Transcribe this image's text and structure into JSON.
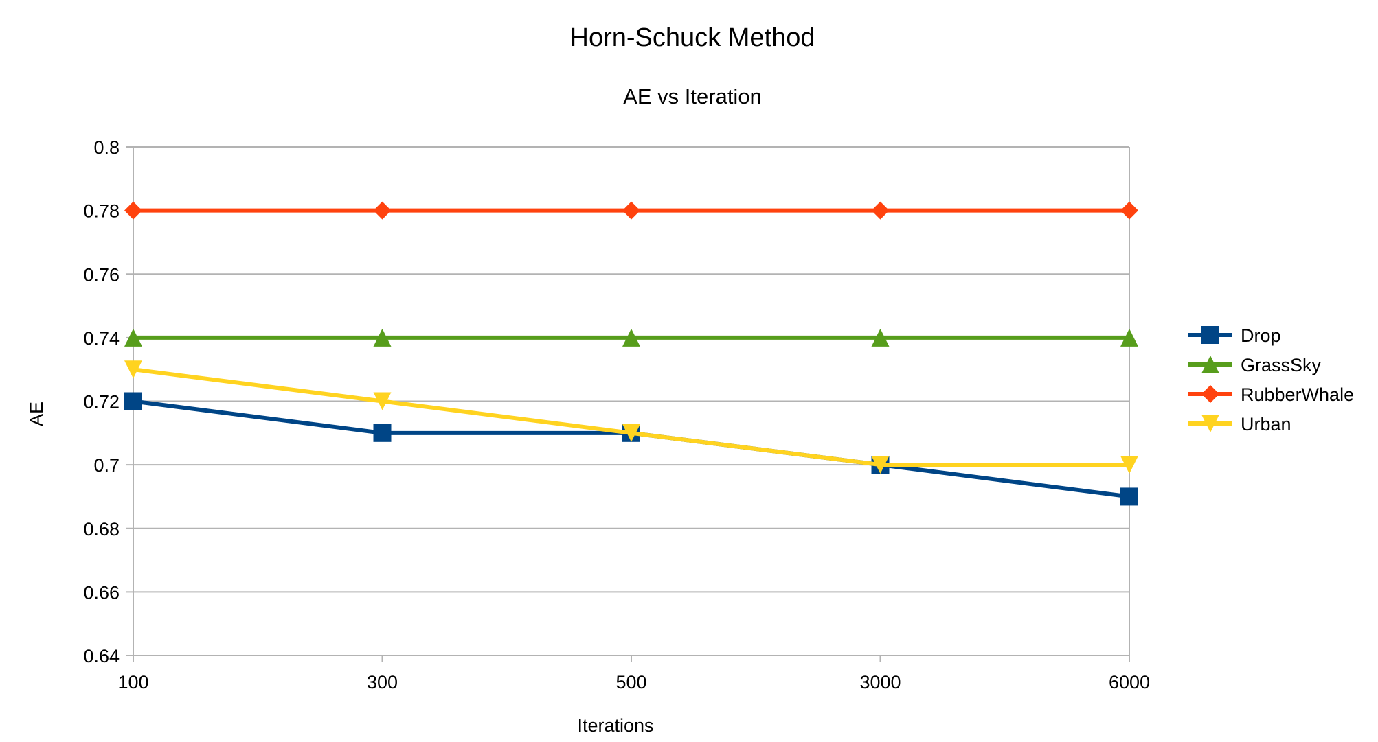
{
  "chart_data": {
    "type": "line",
    "title": "Horn-Schuck Method",
    "subtitle": "AE vs Iteration",
    "xlabel": "Iterations",
    "ylabel": "AE",
    "categories": [
      "100",
      "300",
      "500",
      "3000",
      "6000"
    ],
    "ylim": [
      0.64,
      0.8
    ],
    "yticks": [
      "0.8",
      "0.78",
      "0.76",
      "0.74",
      "0.72",
      "0.7",
      "0.68",
      "0.66",
      "0.64"
    ],
    "grid": true,
    "legend_position": "right",
    "series": [
      {
        "name": "Drop",
        "values": [
          0.72,
          0.71,
          0.71,
          0.7,
          0.69
        ],
        "color": "#004586",
        "marker": "square"
      },
      {
        "name": "GrassSky",
        "values": [
          0.74,
          0.74,
          0.74,
          0.74,
          0.74
        ],
        "color": "#579d1c",
        "marker": "triangle-up"
      },
      {
        "name": "RubberWhale",
        "values": [
          0.78,
          0.78,
          0.78,
          0.78,
          0.78
        ],
        "color": "#ff420e",
        "marker": "diamond"
      },
      {
        "name": "Urban",
        "values": [
          0.73,
          0.72,
          0.71,
          0.7,
          0.7
        ],
        "color": "#ffd320",
        "marker": "triangle-down"
      }
    ]
  }
}
